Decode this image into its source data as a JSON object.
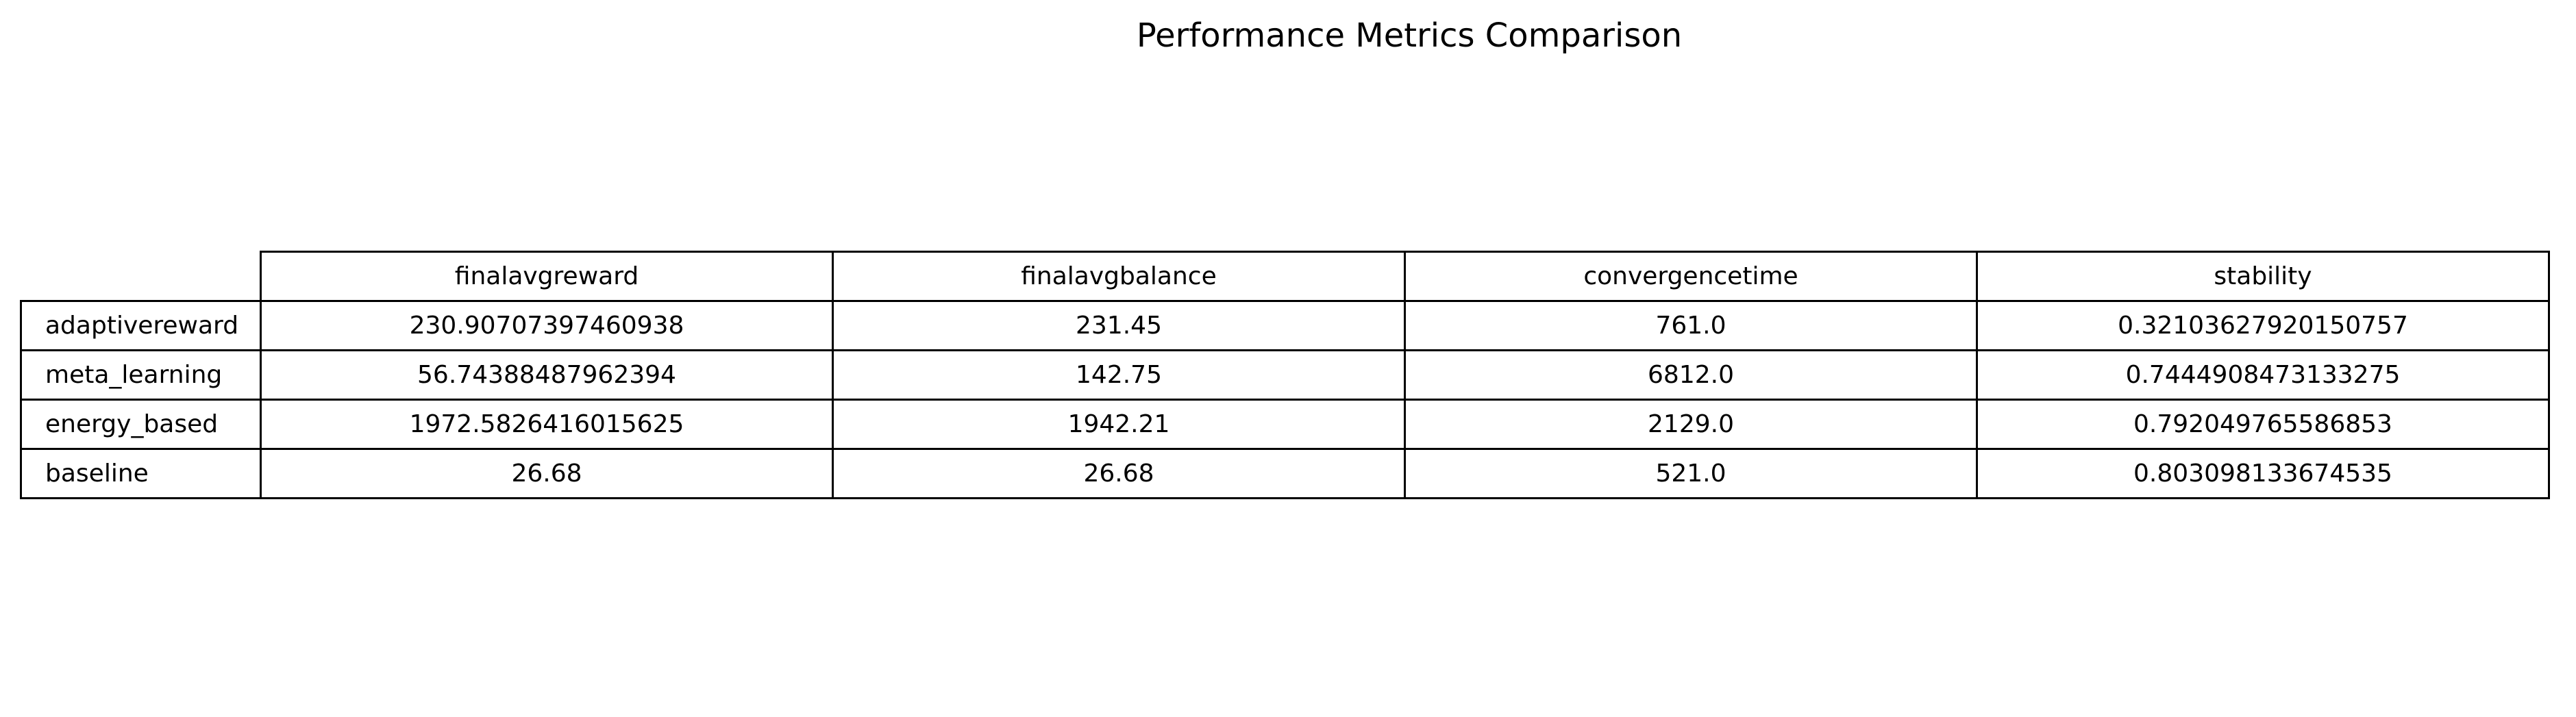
{
  "chart_data": {
    "type": "table",
    "title": "Performance Metrics Comparison",
    "columns": [
      "finalavgreward",
      "finalavgbalance",
      "convergencetime",
      "stability"
    ],
    "rows": [
      {
        "label": "adaptivereward",
        "values": [
          "230.90707397460938",
          "231.45",
          "761.0",
          "0.32103627920150757"
        ]
      },
      {
        "label": "meta_learning",
        "values": [
          "56.74388487962394",
          "142.75",
          "6812.0",
          "0.7444908473133275"
        ]
      },
      {
        "label": "energy_based",
        "values": [
          "1972.5826416015625",
          "1942.21",
          "2129.0",
          "0.792049765586853"
        ]
      },
      {
        "label": "baseline",
        "values": [
          "26.68",
          "26.68",
          "521.0",
          "0.803098133674535"
        ]
      }
    ]
  }
}
